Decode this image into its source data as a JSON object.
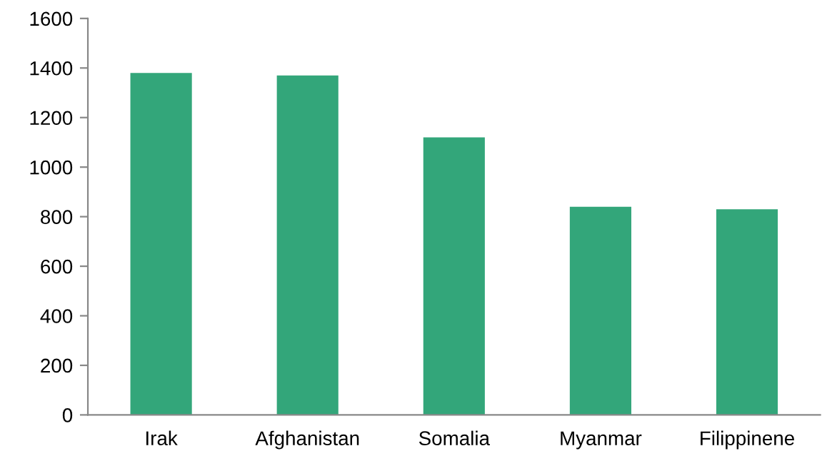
{
  "chart_data": {
    "type": "bar",
    "categories": [
      "Irak",
      "Afghanistan",
      "Somalia",
      "Myanmar",
      "Filippinene"
    ],
    "values": [
      1380,
      1370,
      1120,
      840,
      830
    ],
    "color": "#33a67a",
    "ylim": [
      0,
      1600
    ],
    "yticks": [
      0,
      200,
      400,
      600,
      800,
      1000,
      1200,
      1400,
      1600
    ],
    "grid": false,
    "legend": false
  }
}
